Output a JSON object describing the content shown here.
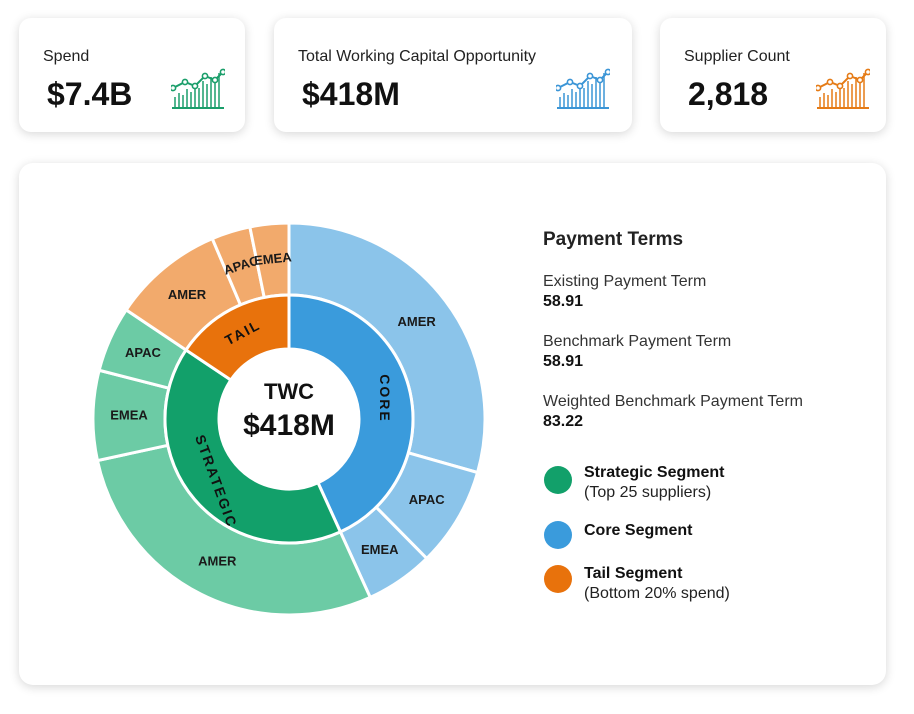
{
  "kpis": {
    "spend": {
      "label": "Spend",
      "value": "$7.4B",
      "icon": "bar-line-chart-icon",
      "color": "#1a9e6a"
    },
    "twc": {
      "label": "Total Working Capital Opportunity",
      "value": "$418M",
      "icon": "bar-line-chart-icon",
      "color": "#3b95d6"
    },
    "suppliers": {
      "label": "Supplier Count",
      "value": "2,818",
      "icon": "bar-line-chart-icon",
      "color": "#e57b16"
    }
  },
  "chart_data": {
    "type": "sunburst",
    "center": {
      "title": "TWC",
      "value": "$418M"
    },
    "inner_ring": [
      {
        "label": "CORE",
        "share": 0.432,
        "color": "#3a9bdc"
      },
      {
        "label": "STRATEGIC",
        "share": 0.412,
        "color": "#12a06a"
      },
      {
        "label": "TAIL",
        "share": 0.156,
        "color": "#e8720c"
      }
    ],
    "outer_ring": [
      {
        "label": "AMER",
        "parent": "CORE",
        "share": 0.294,
        "color": "#8bc4ea"
      },
      {
        "label": "APAC",
        "parent": "CORE",
        "share": 0.082,
        "color": "#8bc4ea"
      },
      {
        "label": "EMEA",
        "parent": "CORE",
        "share": 0.056,
        "color": "#8bc4ea"
      },
      {
        "label": "AMER",
        "parent": "STRATEGIC",
        "share": 0.284,
        "color": "#6ccba5"
      },
      {
        "label": "EMEA",
        "parent": "STRATEGIC",
        "share": 0.074,
        "color": "#6ccba5"
      },
      {
        "label": "APAC",
        "parent": "STRATEGIC",
        "share": 0.054,
        "color": "#6ccba5"
      },
      {
        "label": "AMER",
        "parent": "TAIL",
        "share": 0.092,
        "color": "#f2aa6c"
      },
      {
        "label": "APAC",
        "parent": "TAIL",
        "share": 0.032,
        "color": "#f2aa6c"
      },
      {
        "label": "EMEA",
        "parent": "TAIL",
        "share": 0.032,
        "color": "#f2aa6c"
      }
    ]
  },
  "payment_terms": {
    "title": "Payment Terms",
    "existing_label": "Existing Payment Term",
    "existing_value": "58.91",
    "benchmark_label": "Benchmark Payment Term",
    "benchmark_value": "58.91",
    "weighted_label": "Weighted Benchmark Payment Term",
    "weighted_value": "83.22"
  },
  "legend": [
    {
      "title": "Strategic Segment",
      "sub": "(Top 25 suppliers)",
      "color": "#12a06a"
    },
    {
      "title": "Core Segment",
      "sub": "",
      "color": "#3a9bdc"
    },
    {
      "title": "Tail Segment",
      "sub": "(Bottom 20% spend)",
      "color": "#e8720c"
    }
  ]
}
